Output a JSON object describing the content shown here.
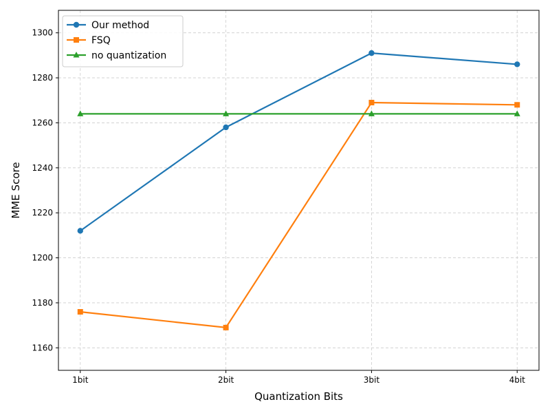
{
  "chart_data": {
    "type": "line",
    "title": "",
    "xlabel": "Quantization Bits",
    "ylabel": "MME Score",
    "categories": [
      "1bit",
      "2bit",
      "3bit",
      "4bit"
    ],
    "ylim": [
      1150,
      1310
    ],
    "yticks": [
      1160,
      1180,
      1200,
      1220,
      1240,
      1260,
      1280,
      1300
    ],
    "grid": true,
    "legend_position": "top-left",
    "series": [
      {
        "name": "Our method",
        "values": [
          1212,
          1258,
          1291,
          1286
        ],
        "color": "#1f77b4",
        "marker": "circle"
      },
      {
        "name": "FSQ",
        "values": [
          1176,
          1169,
          1269,
          1268
        ],
        "color": "#ff7f0e",
        "marker": "square"
      },
      {
        "name": "no quantization",
        "values": [
          1264,
          1264,
          1264,
          1264
        ],
        "color": "#2ca02c",
        "marker": "triangle"
      }
    ]
  }
}
